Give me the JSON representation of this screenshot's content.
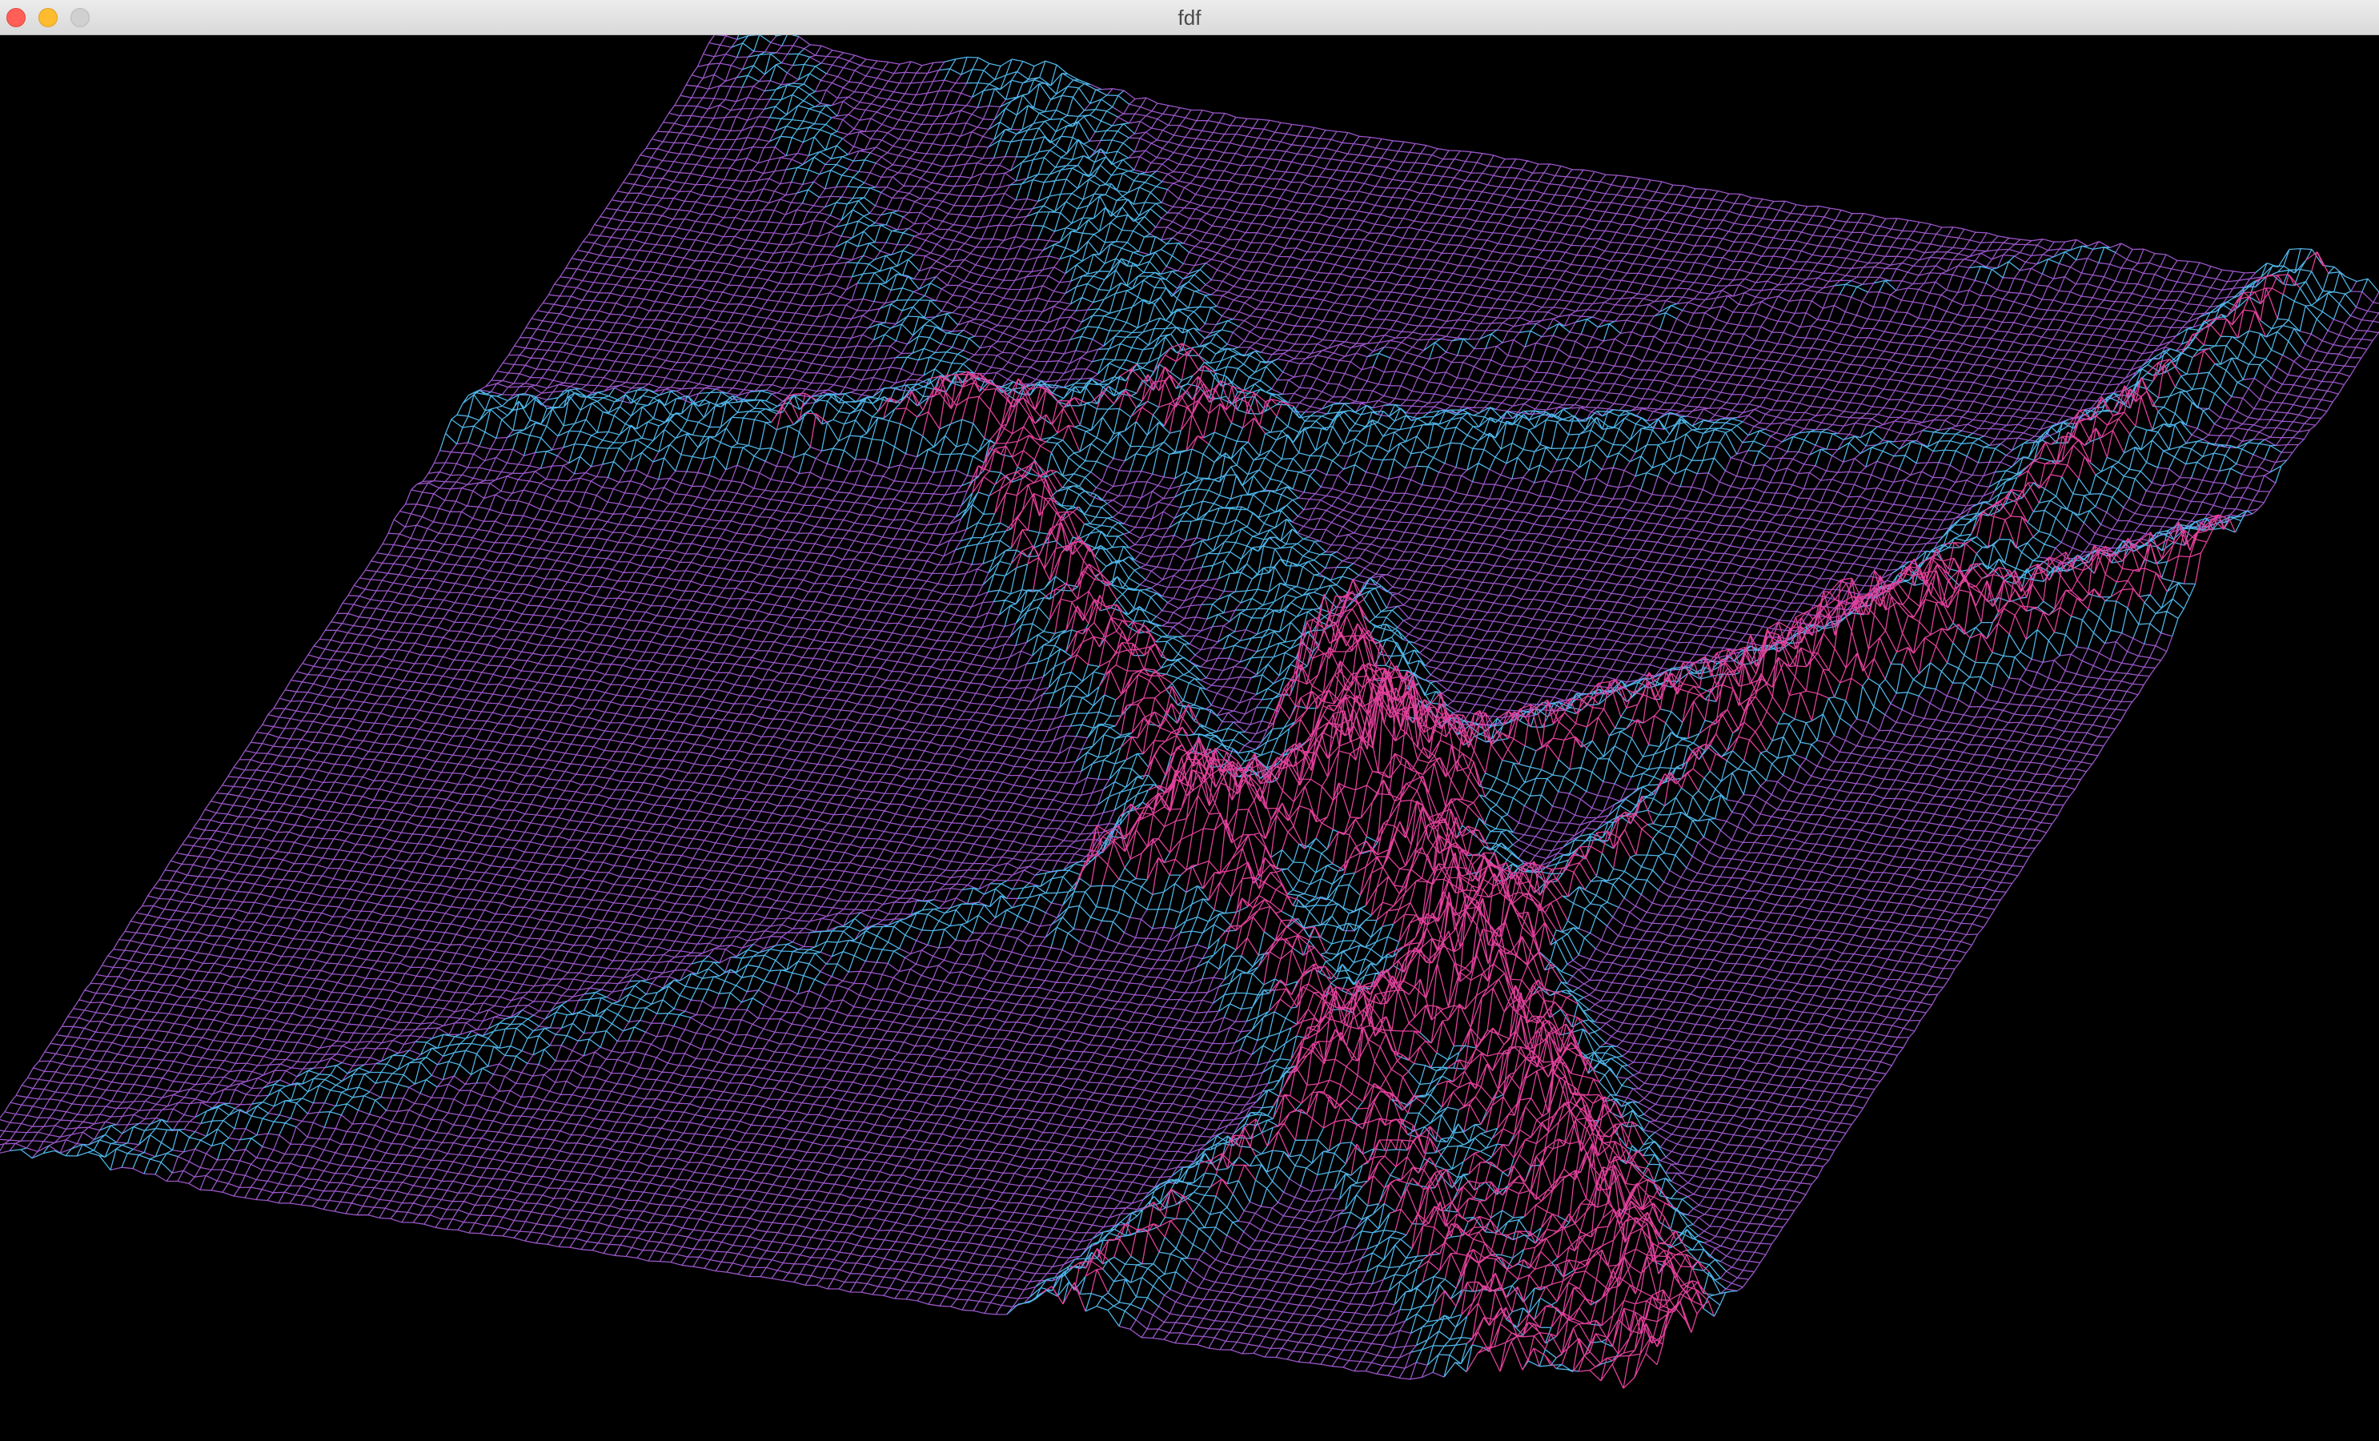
{
  "window": {
    "title": "fdf",
    "controls": {
      "close": "close-icon",
      "minimize": "minimize-icon",
      "zoom": "zoom-icon"
    }
  },
  "viewport": {
    "background": "#000000",
    "colors": {
      "low": "#9a55c8",
      "mid_blue": "#4fb3e6",
      "high_pink": "#e0409a"
    }
  }
}
